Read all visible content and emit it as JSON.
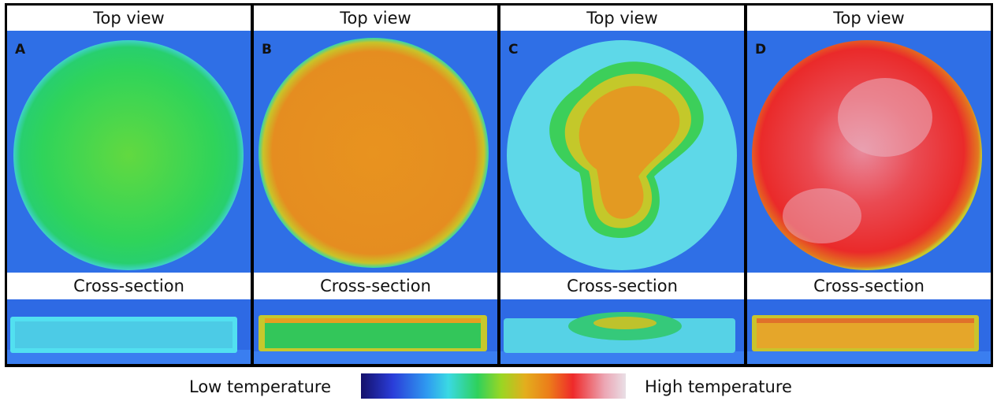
{
  "panels": [
    {
      "letter": "A",
      "top_label": "Top view",
      "cross_label": "Cross-section",
      "top_fill": "#2fd45a",
      "cross_fill": "#4fd6e6"
    },
    {
      "letter": "B",
      "top_label": "Top view",
      "cross_label": "Cross-section",
      "top_fill": "#e8911f",
      "cross_fill": "#34c95a"
    },
    {
      "letter": "C",
      "top_label": "Top view",
      "cross_label": "Cross-section",
      "top_fill": "#e39a22",
      "cross_fill": "#58d0e6"
    },
    {
      "letter": "D",
      "top_label": "Top view",
      "cross_label": "Cross-section",
      "top_fill": "#ea3a3a",
      "cross_fill": "#e5a62a"
    }
  ],
  "legend": {
    "low_label": "Low temperature",
    "high_label": "High temperature"
  }
}
